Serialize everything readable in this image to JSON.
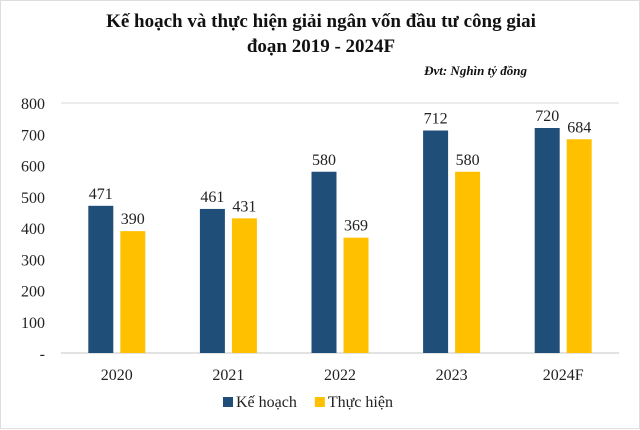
{
  "chart_data": {
    "type": "bar",
    "title_line1": "Kế hoạch và thực hiện giải ngân vốn đầu tư công giai",
    "title_line2": "đoạn 2019 - 2024F",
    "unit_note": "Đvt: Nghìn tỷ đồng",
    "categories": [
      "2020",
      "2021",
      "2022",
      "2023",
      "2024F"
    ],
    "series": [
      {
        "name": "Kế hoạch",
        "color": "#1f4e79",
        "values": [
          471,
          461,
          580,
          712,
          720
        ]
      },
      {
        "name": "Thực hiện",
        "color": "#ffc000",
        "values": [
          390,
          431,
          369,
          580,
          684
        ]
      }
    ],
    "ylim": [
      0,
      800
    ],
    "yticks": [
      0,
      100,
      200,
      300,
      400,
      500,
      600,
      700,
      800
    ],
    "ytick_labels": [
      "-",
      "100",
      "200",
      "300",
      "400",
      "500",
      "600",
      "700",
      "800"
    ],
    "legend": "bottom",
    "grid": false
  }
}
